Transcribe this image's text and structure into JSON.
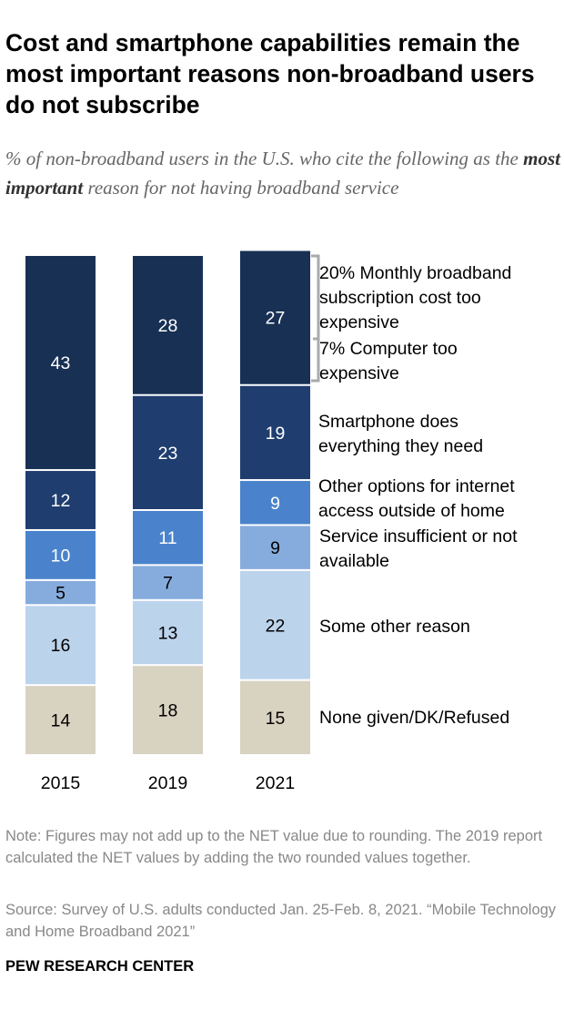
{
  "title": "Cost and smartphone capabilities remain the most important reasons non-broadband users do not subscribe",
  "subtitle": {
    "pre": "% of non-broadband users in the U.S. who cite the following as the ",
    "bold": "most important",
    "post": " reason for not having broadband service"
  },
  "chart_data": {
    "type": "bar",
    "stacked": true,
    "categories": [
      "2015",
      "2019",
      "2021"
    ],
    "series": [
      {
        "name": "None given/DK/Refused",
        "color": "#d8d2c0",
        "values": [
          14,
          18,
          15
        ]
      },
      {
        "name": "Some other reason",
        "color": "#bcd3ec",
        "values": [
          16,
          13,
          22
        ]
      },
      {
        "name": "Service insufficient or not available",
        "color": "#86acdd",
        "values": [
          5,
          7,
          9
        ]
      },
      {
        "name": "Other options for internet access outside of home",
        "color": "#4a83cc",
        "values": [
          10,
          11,
          9
        ]
      },
      {
        "name": "Smartphone does everything they need",
        "color": "#1f3d6f",
        "values": [
          12,
          23,
          19
        ]
      },
      {
        "name": "Cost",
        "color": "#183054",
        "values": [
          43,
          28,
          27
        ]
      }
    ],
    "cost_breakdown_2021": [
      {
        "label": "20% Monthly broadband subscription cost too expensive"
      },
      {
        "label": "7% Computer too expensive"
      }
    ],
    "ylim": [
      0,
      101
    ]
  },
  "note": "Note: Figures may not add up to the NET value due to rounding. The 2019 report calculated the NET values by adding the two rounded values together.",
  "source": "Source: Survey of U.S. adults conducted Jan. 25-Feb. 8, 2021. “Mobile Technology and Home Broadband 2021”",
  "brand": "PEW RESEARCH CENTER"
}
